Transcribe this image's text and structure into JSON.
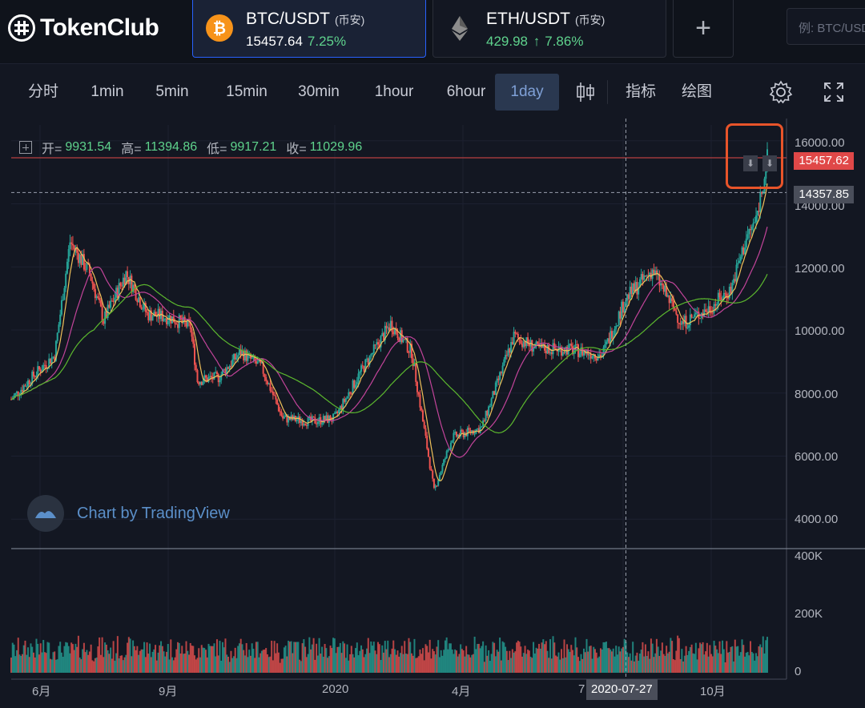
{
  "header": {
    "logo_text": "TokenClub",
    "tabs": [
      {
        "pair": "BTC/USDT",
        "exchange": "(币安)",
        "price": "15457.64",
        "change": "7.25%",
        "icon": "bitcoin-icon",
        "active": true
      },
      {
        "pair": "ETH/USDT",
        "exchange": "(币安)",
        "price": "429.98",
        "arrow": "↑",
        "change": "7.86%",
        "icon": "ethereum-icon",
        "active": false
      }
    ],
    "add_label": "+",
    "search_placeholder": "例: BTC/USDT"
  },
  "toolbar": {
    "intervals": [
      "分时",
      "1min",
      "5min",
      "15min",
      "30min",
      "1hour",
      "6hour",
      "1day"
    ],
    "active_interval": "1day",
    "indicators_label": "指标",
    "draw_label": "绘图",
    "icons": [
      "candles-icon",
      "settings-icon",
      "fullscreen-icon"
    ]
  },
  "legend": {
    "open_label": "开=",
    "open": "9931.54",
    "high_label": "高=",
    "high": "11394.86",
    "low_label": "低=",
    "low": "9917.21",
    "close_label": "收=",
    "close": "11029.96"
  },
  "watermark": "Chart by TradingView",
  "price_axis": {
    "ticks": [
      "16000.00",
      "14000.00",
      "12000.00",
      "10000.00",
      "8000.00",
      "6000.00",
      "4000.00"
    ],
    "last_price": "15457.62",
    "crosshair_price": "14357.85"
  },
  "volume_axis": {
    "ticks": [
      "400K",
      "200K",
      "0"
    ]
  },
  "time_axis": {
    "ticks": [
      "6月",
      "9月",
      "2020",
      "4月",
      "7",
      "10月"
    ],
    "crosshair_date": "2020-07-27"
  },
  "colors": {
    "up": "#26a69a",
    "down": "#ef5350",
    "last_price": "#e04848",
    "accent": "#2962ff",
    "highlight": "#e8542a"
  },
  "chart_data": {
    "type": "candlestick",
    "title": "",
    "xlabel": "",
    "ylabel": "",
    "ylim": [
      3500,
      16500
    ],
    "points": [
      {
        "x": "2019-05-15",
        "y": 7800
      },
      {
        "x": "2019-06-01",
        "y": 8600
      },
      {
        "x": "2019-06-15",
        "y": 9200
      },
      {
        "x": "2019-06-26",
        "y": 12800
      },
      {
        "x": "2019-07-10",
        "y": 11800
      },
      {
        "x": "2019-07-20",
        "y": 10300
      },
      {
        "x": "2019-08-05",
        "y": 11800
      },
      {
        "x": "2019-08-20",
        "y": 10500
      },
      {
        "x": "2019-09-05",
        "y": 10400
      },
      {
        "x": "2019-09-20",
        "y": 10100
      },
      {
        "x": "2019-09-25",
        "y": 8400
      },
      {
        "x": "2019-10-10",
        "y": 8500
      },
      {
        "x": "2019-10-26",
        "y": 9300
      },
      {
        "x": "2019-11-10",
        "y": 8800
      },
      {
        "x": "2019-11-25",
        "y": 7200
      },
      {
        "x": "2019-12-15",
        "y": 7100
      },
      {
        "x": "2020-01-01",
        "y": 7200
      },
      {
        "x": "2020-01-20",
        "y": 8700
      },
      {
        "x": "2020-02-10",
        "y": 10200
      },
      {
        "x": "2020-02-25",
        "y": 9300
      },
      {
        "x": "2020-03-12",
        "y": 4900
      },
      {
        "x": "2020-03-25",
        "y": 6600
      },
      {
        "x": "2020-04-15",
        "y": 6900
      },
      {
        "x": "2020-05-08",
        "y": 9800
      },
      {
        "x": "2020-05-25",
        "y": 9400
      },
      {
        "x": "2020-06-15",
        "y": 9400
      },
      {
        "x": "2020-07-10",
        "y": 9200
      },
      {
        "x": "2020-07-27",
        "y": 11000
      },
      {
        "x": "2020-08-15",
        "y": 11900
      },
      {
        "x": "2020-09-05",
        "y": 10200
      },
      {
        "x": "2020-09-25",
        "y": 10700
      },
      {
        "x": "2020-10-10",
        "y": 11300
      },
      {
        "x": "2020-10-21",
        "y": 12900
      },
      {
        "x": "2020-10-28",
        "y": 13500
      },
      {
        "x": "2020-11-05",
        "y": 15457.62
      }
    ]
  }
}
